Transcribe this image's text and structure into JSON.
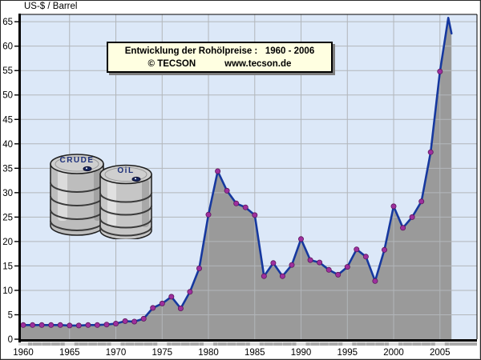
{
  "header": {
    "y_axis_unit_label": "US-$ / Barrel"
  },
  "title_box": {
    "line1": "Entwicklung der Rohölpreise :   1960 - 2006",
    "copyright": "© TECSON",
    "website": "www.tecson.de"
  },
  "illustration": {
    "barrel_back_label": "CRUDE",
    "barrel_front_label": "OiL"
  },
  "chart_data": {
    "type": "area",
    "title": "Entwicklung der Rohölpreise : 1960 - 2006",
    "xlabel": "",
    "ylabel": "US-$ / Barrel",
    "grid": true,
    "legend_position": "none",
    "x": [
      1960,
      1961,
      1962,
      1963,
      1964,
      1965,
      1966,
      1967,
      1968,
      1969,
      1970,
      1971,
      1972,
      1973,
      1974,
      1975,
      1976,
      1977,
      1978,
      1979,
      1980,
      1981,
      1982,
      1983,
      1984,
      1985,
      1986,
      1987,
      1988,
      1989,
      1990,
      1991,
      1992,
      1993,
      1994,
      1995,
      1996,
      1997,
      1998,
      1999,
      2000,
      2001,
      2002,
      2003,
      2004,
      2005
    ],
    "values": [
      2.9,
      2.9,
      2.9,
      2.9,
      2.9,
      2.8,
      2.8,
      2.9,
      2.9,
      3.0,
      3.2,
      3.7,
      3.6,
      4.2,
      6.4,
      7.3,
      8.7,
      6.3,
      9.7,
      14.5,
      25.5,
      34.4,
      30.4,
      27.8,
      27.0,
      25.4,
      12.9,
      15.6,
      12.9,
      15.2,
      20.5,
      16.2,
      15.7,
      14.2,
      13.2,
      14.8,
      18.4,
      16.9,
      11.9,
      18.3,
      27.2,
      22.8,
      25.0,
      28.2,
      38.3,
      54.8
    ],
    "intra_2006_line": [
      {
        "x": 2005.9,
        "v": 65.8
      },
      {
        "x": 2006.25,
        "v": 62.6
      }
    ],
    "x_ticks": [
      1960,
      1965,
      1970,
      1975,
      1980,
      1985,
      1990,
      1995,
      2000,
      2005
    ],
    "y_ticks": [
      0,
      5,
      10,
      15,
      20,
      25,
      30,
      35,
      40,
      45,
      50,
      55,
      60,
      65
    ],
    "xlim": [
      1959.74,
      2009.0
    ],
    "ylim": [
      0,
      66.5
    ],
    "colors": {
      "plot_bg": "#dce8f8",
      "grid": "#b2b6ba",
      "area_fill": "#9a9a9a",
      "line": "#16389f",
      "marker": "#9e2f9e",
      "marker_edge": "#5c195c",
      "axis": "#000000",
      "tick_strip": "#a9a9a9",
      "tick_strip_light": "#dedede",
      "title_box_bg": "#ffffe1",
      "window_bg": "#ffffff"
    }
  }
}
